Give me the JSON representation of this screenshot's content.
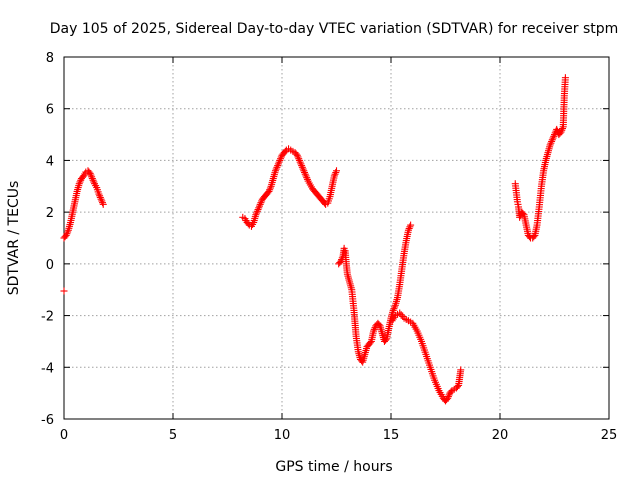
{
  "chart_data": {
    "type": "scatter",
    "title": "Day 105 of 2025, Sidereal Day-to-day VTEC variation (SDTVAR) for receiver stpm",
    "xlabel": "GPS time / hours",
    "ylabel": "SDTVAR / TECUs",
    "xlim": [
      0,
      25
    ],
    "ylim": [
      -6,
      8
    ],
    "xticks": [
      "0",
      "5",
      "10",
      "15",
      "20",
      "25"
    ],
    "yticks": [
      "-6",
      "-4",
      "-2",
      "0",
      "2",
      "4",
      "6",
      "8"
    ],
    "grid": true,
    "marker": "plus",
    "color": "#ff0000",
    "series": [
      {
        "segments": [
          [
            [
              0.0,
              -1.05
            ]
          ],
          [
            [
              0.0,
              1.0
            ],
            [
              0.1,
              1.1
            ],
            [
              0.2,
              1.3
            ],
            [
              0.3,
              1.6
            ],
            [
              0.4,
              2.0
            ],
            [
              0.5,
              2.4
            ],
            [
              0.6,
              2.8
            ],
            [
              0.7,
              3.1
            ],
            [
              0.8,
              3.3
            ],
            [
              0.9,
              3.4
            ],
            [
              1.0,
              3.55
            ],
            [
              1.1,
              3.6
            ],
            [
              1.2,
              3.5
            ],
            [
              1.3,
              3.3
            ],
            [
              1.4,
              3.1
            ],
            [
              1.5,
              2.95
            ],
            [
              1.6,
              2.7
            ],
            [
              1.7,
              2.5
            ],
            [
              1.8,
              2.3
            ]
          ],
          [
            [
              8.2,
              1.8
            ],
            [
              8.3,
              1.75
            ],
            [
              8.4,
              1.6
            ],
            [
              8.5,
              1.5
            ],
            [
              8.6,
              1.45
            ],
            [
              8.7,
              1.6
            ],
            [
              8.8,
              1.9
            ],
            [
              8.9,
              2.1
            ],
            [
              9.0,
              2.3
            ],
            [
              9.1,
              2.5
            ],
            [
              9.2,
              2.6
            ],
            [
              9.3,
              2.7
            ],
            [
              9.4,
              2.8
            ],
            [
              9.5,
              3.0
            ],
            [
              9.6,
              3.3
            ],
            [
              9.7,
              3.6
            ],
            [
              9.8,
              3.8
            ],
            [
              9.9,
              4.0
            ],
            [
              10.0,
              4.2
            ],
            [
              10.1,
              4.3
            ],
            [
              10.2,
              4.4
            ],
            [
              10.3,
              4.45
            ],
            [
              10.4,
              4.4
            ],
            [
              10.5,
              4.35
            ],
            [
              10.6,
              4.3
            ],
            [
              10.7,
              4.2
            ],
            [
              10.8,
              4.0
            ],
            [
              10.9,
              3.8
            ],
            [
              11.0,
              3.6
            ],
            [
              11.1,
              3.4
            ],
            [
              11.2,
              3.2
            ],
            [
              11.3,
              3.05
            ],
            [
              11.4,
              2.9
            ],
            [
              11.5,
              2.8
            ],
            [
              11.6,
              2.7
            ],
            [
              11.7,
              2.6
            ],
            [
              11.8,
              2.5
            ],
            [
              11.9,
              2.4
            ],
            [
              12.0,
              2.3
            ],
            [
              12.1,
              2.35
            ],
            [
              12.2,
              2.6
            ],
            [
              12.3,
              3.0
            ],
            [
              12.4,
              3.4
            ],
            [
              12.5,
              3.6
            ]
          ],
          [
            [
              12.6,
              0.0
            ],
            [
              12.7,
              0.1
            ],
            [
              12.8,
              0.3
            ],
            [
              12.85,
              0.6
            ],
            [
              12.9,
              0.5
            ],
            [
              12.95,
              0.0
            ],
            [
              13.0,
              -0.4
            ],
            [
              13.1,
              -0.7
            ],
            [
              13.2,
              -1.0
            ],
            [
              13.3,
              -1.8
            ],
            [
              13.4,
              -2.8
            ],
            [
              13.5,
              -3.4
            ],
            [
              13.6,
              -3.7
            ],
            [
              13.7,
              -3.8
            ],
            [
              13.8,
              -3.5
            ],
            [
              13.9,
              -3.2
            ],
            [
              14.0,
              -3.1
            ],
            [
              14.1,
              -3.0
            ],
            [
              14.2,
              -2.6
            ],
            [
              14.3,
              -2.4
            ],
            [
              14.4,
              -2.3
            ],
            [
              14.5,
              -2.4
            ],
            [
              14.6,
              -2.7
            ],
            [
              14.7,
              -3.0
            ],
            [
              14.8,
              -2.9
            ],
            [
              14.9,
              -2.5
            ],
            [
              15.0,
              -2.1
            ],
            [
              15.1,
              -1.8
            ],
            [
              15.2,
              -1.6
            ],
            [
              15.3,
              -1.3
            ],
            [
              15.4,
              -0.8
            ],
            [
              15.5,
              -0.2
            ],
            [
              15.6,
              0.4
            ],
            [
              15.7,
              0.9
            ],
            [
              15.8,
              1.3
            ],
            [
              15.9,
              1.5
            ]
          ],
          [
            [
              15.05,
              -2.2
            ],
            [
              15.2,
              -2.0
            ],
            [
              15.4,
              -1.9
            ],
            [
              15.6,
              -2.1
            ],
            [
              15.8,
              -2.2
            ],
            [
              16.0,
              -2.3
            ],
            [
              16.2,
              -2.6
            ],
            [
              16.4,
              -3.0
            ],
            [
              16.6,
              -3.5
            ],
            [
              16.8,
              -4.0
            ],
            [
              17.0,
              -4.5
            ],
            [
              17.2,
              -4.9
            ],
            [
              17.4,
              -5.2
            ],
            [
              17.5,
              -5.3
            ],
            [
              17.6,
              -5.2
            ],
            [
              17.7,
              -5.0
            ],
            [
              17.8,
              -4.9
            ],
            [
              17.9,
              -4.85
            ],
            [
              18.0,
              -4.8
            ],
            [
              18.1,
              -4.7
            ],
            [
              18.15,
              -4.4
            ],
            [
              18.2,
              -4.1
            ]
          ],
          [
            [
              20.7,
              3.1
            ],
            [
              20.8,
              2.4
            ],
            [
              20.85,
              2.2
            ],
            [
              20.9,
              1.8
            ],
            [
              21.0,
              2.0
            ],
            [
              21.1,
              1.9
            ],
            [
              21.2,
              1.5
            ],
            [
              21.3,
              1.1
            ],
            [
              21.4,
              1.0
            ],
            [
              21.5,
              1.0
            ],
            [
              21.6,
              1.1
            ],
            [
              21.7,
              1.5
            ],
            [
              21.8,
              2.2
            ],
            [
              21.9,
              3.0
            ],
            [
              22.0,
              3.6
            ],
            [
              22.1,
              4.0
            ],
            [
              22.2,
              4.3
            ],
            [
              22.3,
              4.6
            ],
            [
              22.4,
              4.8
            ],
            [
              22.5,
              5.0
            ],
            [
              22.6,
              5.2
            ],
            [
              22.7,
              5.0
            ],
            [
              22.8,
              5.1
            ],
            [
              22.9,
              5.3
            ],
            [
              22.95,
              6.5
            ],
            [
              23.0,
              7.2
            ]
          ]
        ]
      }
    ]
  }
}
